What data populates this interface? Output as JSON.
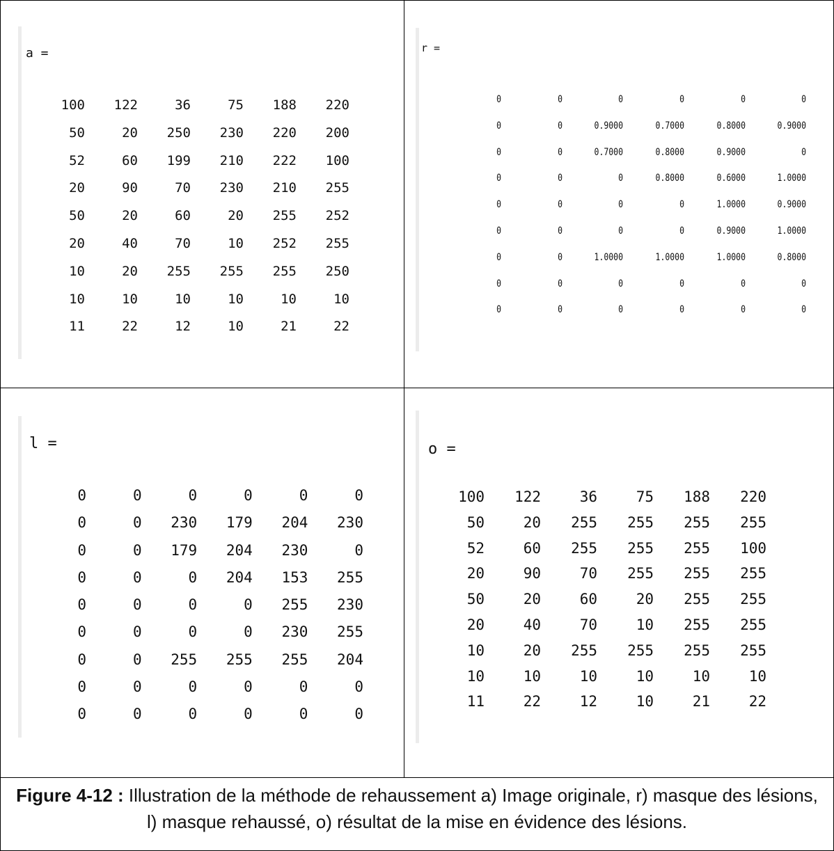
{
  "matrices": {
    "a": {
      "label": "a =",
      "rows": [
        [
          "100",
          "122",
          "36",
          "75",
          "188",
          "220"
        ],
        [
          "50",
          "20",
          "250",
          "230",
          "220",
          "200"
        ],
        [
          "52",
          "60",
          "199",
          "210",
          "222",
          "100"
        ],
        [
          "20",
          "90",
          "70",
          "230",
          "210",
          "255"
        ],
        [
          "50",
          "20",
          "60",
          "20",
          "255",
          "252"
        ],
        [
          "20",
          "40",
          "70",
          "10",
          "252",
          "255"
        ],
        [
          "10",
          "20",
          "255",
          "255",
          "255",
          "250"
        ],
        [
          "10",
          "10",
          "10",
          "10",
          "10",
          "10"
        ],
        [
          "11",
          "22",
          "12",
          "10",
          "21",
          "22"
        ]
      ]
    },
    "r": {
      "label": "r =",
      "rows": [
        [
          "0",
          "0",
          "0",
          "0",
          "0",
          "0"
        ],
        [
          "0",
          "0",
          "0.9000",
          "0.7000",
          "0.8000",
          "0.9000"
        ],
        [
          "0",
          "0",
          "0.7000",
          "0.8000",
          "0.9000",
          "0"
        ],
        [
          "0",
          "0",
          "0",
          "0.8000",
          "0.6000",
          "1.0000"
        ],
        [
          "0",
          "0",
          "0",
          "0",
          "1.0000",
          "0.9000"
        ],
        [
          "0",
          "0",
          "0",
          "0",
          "0.9000",
          "1.0000"
        ],
        [
          "0",
          "0",
          "1.0000",
          "1.0000",
          "1.0000",
          "0.8000"
        ],
        [
          "0",
          "0",
          "0",
          "0",
          "0",
          "0"
        ],
        [
          "0",
          "0",
          "0",
          "0",
          "0",
          "0"
        ]
      ]
    },
    "l": {
      "label": "l =",
      "rows": [
        [
          "0",
          "0",
          "0",
          "0",
          "0",
          "0"
        ],
        [
          "0",
          "0",
          "230",
          "179",
          "204",
          "230"
        ],
        [
          "0",
          "0",
          "179",
          "204",
          "230",
          "0"
        ],
        [
          "0",
          "0",
          "0",
          "204",
          "153",
          "255"
        ],
        [
          "0",
          "0",
          "0",
          "0",
          "255",
          "230"
        ],
        [
          "0",
          "0",
          "0",
          "0",
          "230",
          "255"
        ],
        [
          "0",
          "0",
          "255",
          "255",
          "255",
          "204"
        ],
        [
          "0",
          "0",
          "0",
          "0",
          "0",
          "0"
        ],
        [
          "0",
          "0",
          "0",
          "0",
          "0",
          "0"
        ]
      ]
    },
    "o": {
      "label": "o =",
      "rows": [
        [
          "100",
          "122",
          "36",
          "75",
          "188",
          "220"
        ],
        [
          "50",
          "20",
          "255",
          "255",
          "255",
          "255"
        ],
        [
          "52",
          "60",
          "255",
          "255",
          "255",
          "100"
        ],
        [
          "20",
          "90",
          "70",
          "255",
          "255",
          "255"
        ],
        [
          "50",
          "20",
          "60",
          "20",
          "255",
          "255"
        ],
        [
          "20",
          "40",
          "70",
          "10",
          "255",
          "255"
        ],
        [
          "10",
          "20",
          "255",
          "255",
          "255",
          "255"
        ],
        [
          "10",
          "10",
          "10",
          "10",
          "10",
          "10"
        ],
        [
          "11",
          "22",
          "12",
          "10",
          "21",
          "22"
        ]
      ]
    }
  },
  "caption": {
    "prefix": "Figure 4-12 :",
    "text": " Illustration de la méthode de rehaussement a) Image originale, r) masque des lésions, l) masque rehaussé, o) résultat de la mise en évidence des lésions."
  }
}
